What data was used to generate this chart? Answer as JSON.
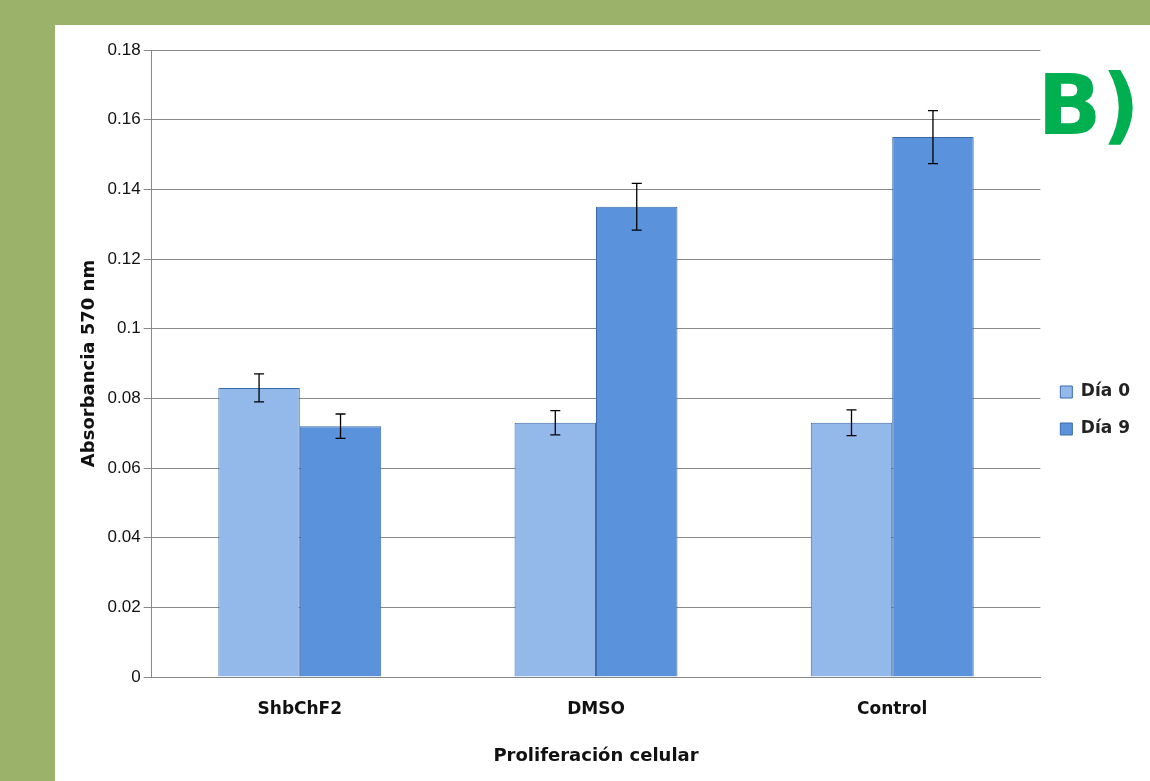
{
  "chart_data": {
    "type": "bar",
    "xlabel": "Proliferación celular",
    "ylabel": "Absorbancia 570 nm",
    "categories": [
      "ShbChF2",
      "DMSO",
      "Control"
    ],
    "series": [
      {
        "name": "Día 0",
        "color": "#93b8ea",
        "values": [
          0.083,
          0.073,
          0.073
        ],
        "errors": [
          0.004,
          0.0035,
          0.0037
        ]
      },
      {
        "name": "Día 9",
        "color": "#5a93dc",
        "values": [
          0.072,
          0.135,
          0.155
        ],
        "errors": [
          0.0035,
          0.0067,
          0.0076
        ]
      }
    ],
    "ylim": [
      0,
      0.18
    ],
    "yticks": [
      0,
      0.02,
      0.04,
      0.06,
      0.08,
      0.1,
      0.12,
      0.14,
      0.16,
      0.18
    ],
    "grid": "y",
    "legend": "right",
    "annotations": [
      "B)"
    ]
  }
}
